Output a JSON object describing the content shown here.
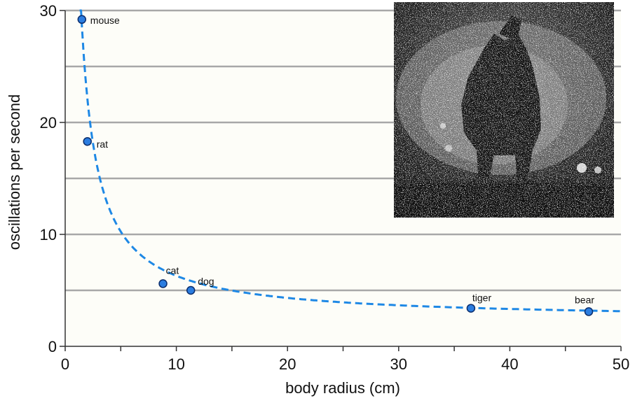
{
  "chart_data": {
    "type": "scatter",
    "xlabel": "body radius (cm)",
    "ylabel": "oscillations per second",
    "xlim": [
      0,
      50
    ],
    "ylim": [
      0,
      30
    ],
    "x_ticks": [
      0,
      10,
      20,
      30,
      40,
      50
    ],
    "y_ticks": [
      0,
      10,
      20,
      30
    ],
    "x_tick_labels": [
      "0",
      "10",
      "20",
      "30",
      "40",
      "50"
    ],
    "y_tick_labels": [
      "0",
      "10",
      "20",
      "30"
    ],
    "gridlines_y": [
      5,
      10,
      15,
      20,
      25,
      30
    ],
    "grid": "horizontal",
    "series": [
      {
        "points": [
          {
            "label": "mouse",
            "x": 1.5,
            "y": 29.2
          },
          {
            "label": "rat",
            "x": 2.0,
            "y": 18.3
          },
          {
            "label": "cat",
            "x": 8.8,
            "y": 5.6
          },
          {
            "label": "dog",
            "x": 11.3,
            "y": 5.0
          },
          {
            "label": "tiger",
            "x": 36.5,
            "y": 3.4
          },
          {
            "label": "bear",
            "x": 47.1,
            "y": 3.1
          }
        ]
      }
    ],
    "fit_curve": {
      "style": "dashed",
      "color": "#1e88e5",
      "x": [
        1.3,
        50
      ]
    },
    "colors": {
      "marker_fill": "#2b7de0",
      "marker_stroke": "#0b2d6b",
      "curve": "#1e88e5",
      "plot_background": "#fdfdf8",
      "gridline": "#a8a8a8"
    },
    "inset_photo": {
      "icon": "wet-dog-shaking-photo"
    }
  }
}
